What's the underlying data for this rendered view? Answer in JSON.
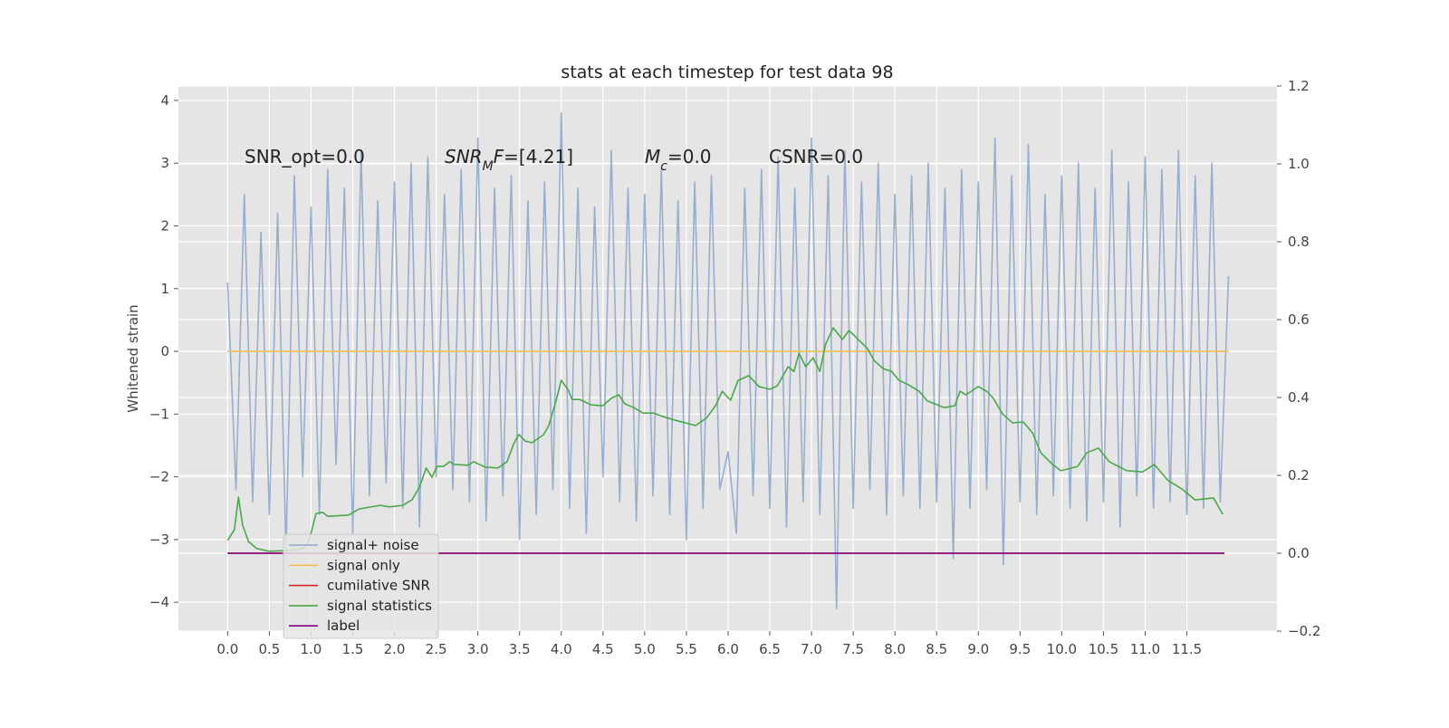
{
  "chart_data": {
    "type": "line",
    "title": "stats at each timestep for test data 98",
    "ylabel": "Whitened strain",
    "annotations": [
      [
        {
          "text": "SNR_opt=0.0"
        }
      ],
      [
        {
          "text": "SNR",
          "style": "italic"
        },
        {
          "text": "M",
          "style": "sub"
        },
        {
          "text": "F",
          "style": "italic"
        },
        {
          "text": "=[4.21]"
        }
      ],
      [
        {
          "text": "M",
          "style": "italic"
        },
        {
          "text": "c",
          "style": "sub"
        },
        {
          "text": "=0.0"
        }
      ],
      [
        {
          "text": "CSNR=0.0"
        }
      ]
    ],
    "xlim": [
      -0.59,
      12.58
    ],
    "xticks": [
      {
        "value": 0,
        "label": "0.0"
      },
      0.5,
      {
        "value": 1,
        "label": "1.0"
      },
      1.5,
      {
        "value": 2,
        "label": "2.0"
      },
      2.5,
      {
        "value": 3,
        "label": "3.0"
      },
      3.5,
      {
        "value": 4,
        "label": "4.0"
      },
      4.5,
      {
        "value": 5,
        "label": "5.0"
      },
      5.5,
      {
        "value": 6,
        "label": "6.0"
      },
      6.5,
      {
        "value": 7,
        "label": "7.0"
      },
      7.5,
      {
        "value": 8,
        "label": "8.0"
      },
      8.5,
      {
        "value": 9,
        "label": "9.0"
      },
      9.5,
      {
        "value": 10,
        "label": "10.0"
      },
      10.5,
      {
        "value": 11,
        "label": "11.0"
      },
      11.5
    ],
    "ylim": [
      -4.46,
      4.23
    ],
    "yticks": [
      {
        "value": -4,
        "label": "−4"
      },
      {
        "value": -3,
        "label": "−3"
      },
      {
        "value": -2,
        "label": "−2"
      },
      {
        "value": -1,
        "label": "−1"
      },
      0,
      1,
      2,
      3,
      4
    ],
    "y2lim": [
      -0.2,
      1.2
    ],
    "y2ticks": [
      {
        "value": -0.2,
        "label": "−0.2"
      },
      {
        "value": 0,
        "label": "0.0"
      },
      0.2,
      0.4,
      0.6,
      0.8,
      {
        "value": 1,
        "label": "1.0"
      },
      1.2
    ],
    "grid": true,
    "legend": "lower left",
    "series": [
      {
        "name": "signal+ noise",
        "color": "#8fa6cc",
        "x": [
          0,
          0.1,
          0.2,
          0.3,
          0.4,
          0.5,
          0.6,
          0.7,
          0.8,
          0.9,
          1,
          1.1,
          1.2,
          1.3,
          1.4,
          1.5,
          1.6,
          1.7,
          1.8,
          1.9,
          2,
          2.1,
          2.2,
          2.3,
          2.4,
          2.5,
          2.6,
          2.7,
          2.8,
          2.9,
          3,
          3.1,
          3.2,
          3.3,
          3.4,
          3.5,
          3.6,
          3.7,
          3.8,
          3.9,
          4,
          4.1,
          4.2,
          4.3,
          4.4,
          4.5,
          4.6,
          4.7,
          4.8,
          4.9,
          5,
          5.1,
          5.2,
          5.3,
          5.4,
          5.5,
          5.6,
          5.7,
          5.8,
          5.9,
          6,
          6.1,
          6.2,
          6.3,
          6.4,
          6.5,
          6.6,
          6.7,
          6.8,
          6.9,
          7,
          7.1,
          7.2,
          7.3,
          7.4,
          7.5,
          7.6,
          7.7,
          7.8,
          7.9,
          8,
          8.1,
          8.2,
          8.3,
          8.4,
          8.5,
          8.6,
          8.7,
          8.8,
          8.9,
          9,
          9.1,
          9.2,
          9.3,
          9.4,
          9.5,
          9.6,
          9.7,
          9.8,
          9.9,
          10,
          10.1,
          10.2,
          10.3,
          10.4,
          10.5,
          10.6,
          10.7,
          10.8,
          10.9,
          11,
          11.1,
          11.2,
          11.3,
          11.4,
          11.5,
          11.6,
          11.7,
          11.8,
          11.9,
          12
        ],
        "values": [
          1.1,
          -2.2,
          2.5,
          -2.4,
          1.9,
          -2.6,
          2.2,
          -3.2,
          2.8,
          -2.0,
          2.3,
          -2.6,
          2.9,
          -1.8,
          2.6,
          -2.9,
          3.2,
          -2.3,
          2.4,
          -2.1,
          2.7,
          -2.5,
          3.0,
          -2.8,
          3.1,
          -2.0,
          2.5,
          -2.2,
          2.9,
          -2.4,
          3.4,
          -2.7,
          2.6,
          -2.3,
          2.8,
          -3.0,
          2.4,
          -2.6,
          2.7,
          -2.2,
          3.8,
          -2.5,
          2.6,
          -2.9,
          2.3,
          -2.0,
          3.2,
          -2.4,
          2.6,
          -2.7,
          2.5,
          -2.3,
          2.9,
          -2.6,
          2.4,
          -3.0,
          2.7,
          -2.5,
          2.8,
          -2.2,
          -1.6,
          -2.9,
          2.6,
          -2.3,
          2.9,
          -2.5,
          3.1,
          -2.8,
          2.6,
          -2.4,
          3.4,
          -2.6,
          2.8,
          -4.1,
          3.2,
          -2.5,
          2.7,
          -2.2,
          3.0,
          -2.6,
          2.5,
          -2.3,
          2.8,
          -2.5,
          3.0,
          -2.4,
          2.6,
          -3.3,
          2.9,
          -2.5,
          2.7,
          -2.2,
          3.4,
          -3.4,
          2.8,
          -2.4,
          3.3,
          -2.6,
          2.5,
          -2.3,
          2.8,
          -2.5,
          3.0,
          -2.7,
          2.6,
          -2.4,
          3.2,
          -2.8,
          2.7,
          -2.3,
          3.1,
          -2.5,
          2.9,
          -2.4,
          3.2,
          -2.6,
          2.8,
          -2.5,
          3.0,
          -2.4,
          1.2
        ]
      },
      {
        "name": "signal only",
        "color": "#f0bf50",
        "x": [
          0,
          12
        ],
        "values": [
          0,
          0
        ]
      },
      {
        "name": "cumilative SNR",
        "color": "#d62728",
        "axis": "y2",
        "x": [
          0,
          11.95
        ],
        "values": [
          0,
          0
        ]
      },
      {
        "name": "signal statistics",
        "color": "#4aa84a",
        "axis": "y2",
        "x": [
          0,
          0.08,
          0.13,
          0.18,
          0.25,
          0.35,
          0.5,
          0.75,
          0.91,
          0.98,
          1.06,
          1.14,
          1.2,
          1.45,
          1.58,
          1.83,
          1.94,
          2.1,
          2.21,
          2.3,
          2.38,
          2.45,
          2.51,
          2.59,
          2.66,
          2.72,
          2.88,
          2.95,
          3.09,
          3.24,
          3.35,
          3.43,
          3.49,
          3.57,
          3.65,
          3.79,
          3.85,
          3.93,
          4.0,
          4.08,
          4.13,
          4.22,
          4.36,
          4.5,
          4.6,
          4.69,
          4.76,
          4.87,
          4.98,
          5.11,
          5.22,
          5.36,
          5.52,
          5.61,
          5.74,
          5.85,
          5.93,
          6.03,
          6.12,
          6.25,
          6.37,
          6.5,
          6.59,
          6.72,
          6.79,
          6.85,
          6.93,
          7.02,
          7.1,
          7.17,
          7.26,
          7.37,
          7.45,
          7.56,
          7.67,
          7.75,
          7.86,
          7.96,
          8.05,
          8.16,
          8.29,
          8.39,
          8.51,
          8.59,
          8.72,
          8.78,
          8.85,
          9.0,
          9.1,
          9.18,
          9.29,
          9.41,
          9.54,
          9.65,
          9.75,
          9.88,
          9.99,
          10.19,
          10.3,
          10.44,
          10.57,
          10.78,
          10.97,
          11.11,
          11.27,
          11.44,
          11.6,
          11.82,
          11.93
        ],
        "values": [
          0.033,
          0.06,
          0.144,
          0.072,
          0.03,
          0.012,
          0.005,
          0.007,
          0.012,
          0.035,
          0.102,
          0.105,
          0.095,
          0.098,
          0.114,
          0.123,
          0.119,
          0.123,
          0.137,
          0.17,
          0.219,
          0.195,
          0.223,
          0.223,
          0.235,
          0.228,
          0.226,
          0.235,
          0.221,
          0.219,
          0.235,
          0.281,
          0.305,
          0.288,
          0.284,
          0.305,
          0.328,
          0.386,
          0.444,
          0.421,
          0.395,
          0.395,
          0.381,
          0.379,
          0.398,
          0.407,
          0.384,
          0.374,
          0.36,
          0.36,
          0.351,
          0.342,
          0.333,
          0.328,
          0.347,
          0.379,
          0.416,
          0.393,
          0.444,
          0.456,
          0.428,
          0.421,
          0.43,
          0.479,
          0.467,
          0.514,
          0.479,
          0.502,
          0.467,
          0.537,
          0.579,
          0.549,
          0.572,
          0.549,
          0.526,
          0.495,
          0.474,
          0.467,
          0.444,
          0.433,
          0.416,
          0.391,
          0.381,
          0.374,
          0.379,
          0.416,
          0.407,
          0.428,
          0.416,
          0.398,
          0.358,
          0.335,
          0.337,
          0.309,
          0.258,
          0.23,
          0.212,
          0.223,
          0.258,
          0.27,
          0.235,
          0.212,
          0.209,
          0.228,
          0.188,
          0.165,
          0.137,
          0.142,
          0.1
        ]
      },
      {
        "name": "label",
        "color": "#800080",
        "axis": "y2",
        "x": [
          0,
          11.95
        ],
        "values": [
          0,
          0
        ]
      }
    ]
  }
}
